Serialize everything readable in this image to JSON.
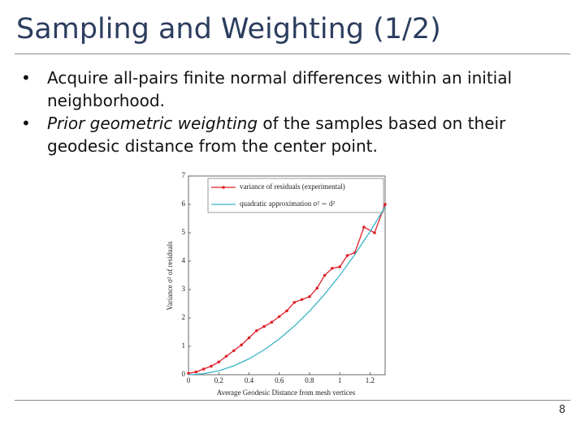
{
  "slide": {
    "title": "Sampling and Weighting (1/2)",
    "bullets": [
      {
        "text": "Acquire all-pairs finite normal differences within an initial neighborhood."
      },
      {
        "italic": "Prior geometric weighting",
        "text": " of the samples based on their geodesic distance from the center point."
      }
    ],
    "page_number": "8"
  },
  "chart_data": {
    "type": "line",
    "x_label": "Average Geodesic Distance from mesh vertices",
    "y_label": "Variance σ² of residuals",
    "xlim": [
      0,
      1.3
    ],
    "ylim": [
      0,
      7
    ],
    "xticks": [
      0,
      0.2,
      0.4,
      0.6,
      0.8,
      1,
      1.2
    ],
    "yticks": [
      0,
      1,
      2,
      3,
      4,
      5,
      6,
      7
    ],
    "series": [
      {
        "name": "variance of residuals (experimental)",
        "color": "#e0202a",
        "markers": true,
        "x": [
          0,
          0.05,
          0.1,
          0.15,
          0.2,
          0.25,
          0.3,
          0.35,
          0.4,
          0.45,
          0.5,
          0.55,
          0.6,
          0.65,
          0.7,
          0.75,
          0.8,
          0.85,
          0.9,
          0.95,
          1.0,
          1.05,
          1.1,
          1.16,
          1.23,
          1.3
        ],
        "values": [
          0.05,
          0.1,
          0.2,
          0.3,
          0.45,
          0.65,
          0.85,
          1.05,
          1.3,
          1.55,
          1.7,
          1.85,
          2.05,
          2.25,
          2.55,
          2.65,
          2.75,
          3.05,
          3.5,
          3.75,
          3.8,
          4.2,
          4.3,
          5.2,
          5.0,
          6.0
        ]
      },
      {
        "name": "quadratic approximation σ² ∼ d²",
        "color": "#3cb4c8",
        "markers": false,
        "x": [
          0,
          0.1,
          0.2,
          0.3,
          0.4,
          0.5,
          0.6,
          0.7,
          0.8,
          0.9,
          1.0,
          1.1,
          1.2,
          1.3
        ],
        "values": [
          0,
          0.035,
          0.14,
          0.315,
          0.56,
          0.875,
          1.26,
          1.715,
          2.24,
          2.835,
          3.5,
          4.235,
          5.04,
          5.915
        ]
      }
    ]
  }
}
